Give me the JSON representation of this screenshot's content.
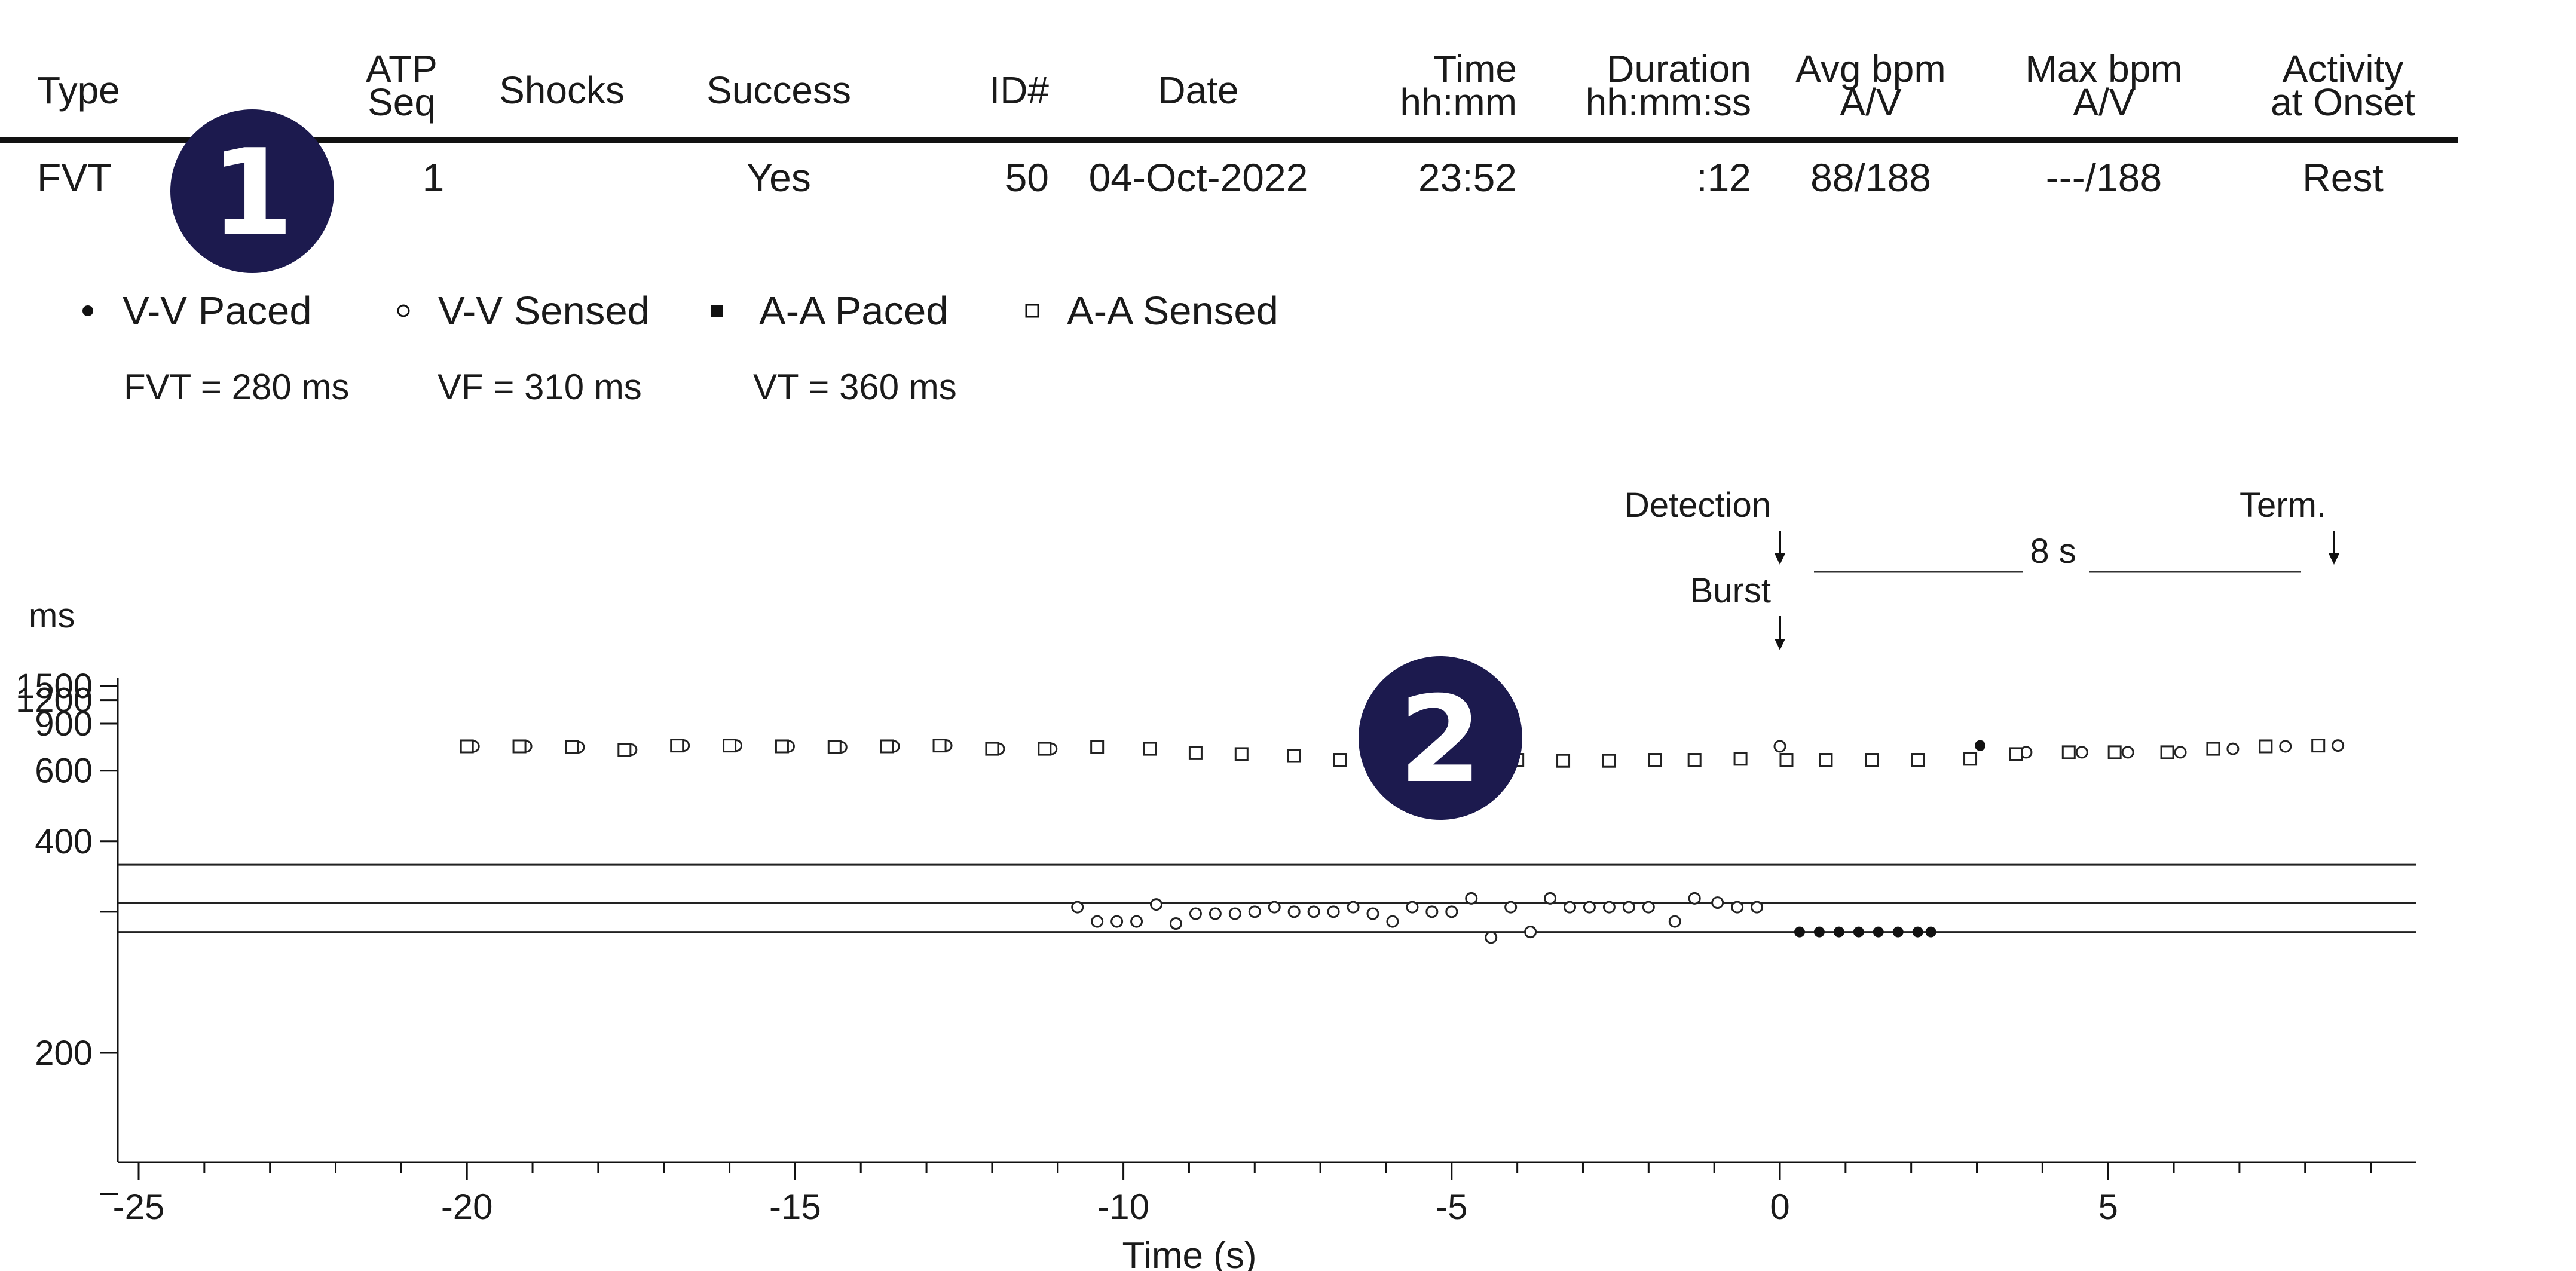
{
  "episode_table": {
    "headers": [
      {
        "key": "type",
        "lines": [
          "Type"
        ]
      },
      {
        "key": "atp_seq",
        "lines": [
          "ATP",
          "Seq"
        ]
      },
      {
        "key": "shocks",
        "lines": [
          "Shocks"
        ]
      },
      {
        "key": "success",
        "lines": [
          "Success"
        ]
      },
      {
        "key": "id",
        "lines": [
          "ID#"
        ]
      },
      {
        "key": "date",
        "lines": [
          "Date"
        ]
      },
      {
        "key": "time",
        "lines": [
          "Time",
          "hh:mm"
        ]
      },
      {
        "key": "duration",
        "lines": [
          "Duration",
          "hh:mm:ss"
        ]
      },
      {
        "key": "avg_bpm",
        "lines": [
          "Avg bpm",
          "A/V"
        ]
      },
      {
        "key": "max_bpm",
        "lines": [
          "Max bpm",
          "A/V"
        ]
      },
      {
        "key": "activity",
        "lines": [
          "Activity",
          "at Onset"
        ]
      }
    ],
    "row": {
      "type": "FVT",
      "atp_seq": "1",
      "shocks": "",
      "success": "Yes",
      "id": "50",
      "date": "04-Oct-2022",
      "time": "23:52",
      "duration": ":12",
      "avg_bpm": "88/188",
      "max_bpm": "---/188",
      "activity": "Rest"
    }
  },
  "badges": [
    {
      "label": "1",
      "color": "#1c1a4e"
    },
    {
      "label": "2",
      "color": "#1c1a4e"
    }
  ],
  "legend": [
    {
      "symbol": "filled-circle",
      "label": "V-V Paced"
    },
    {
      "symbol": "open-circle",
      "label": "V-V Sensed"
    },
    {
      "symbol": "filled-square",
      "label": "A-A Paced"
    },
    {
      "symbol": "open-square",
      "label": "A-A Sensed"
    }
  ],
  "thresholds": [
    "FVT = 280 ms",
    "VF = 310 ms",
    "VT = 360 ms"
  ],
  "annotations": {
    "detection": "Detection",
    "burst": "Burst",
    "term": "Term.",
    "span": "8 s"
  },
  "chart_data": {
    "type": "scatter",
    "ylabel": "ms",
    "xlabel": "Time (s)",
    "ylim": [
      100,
      1500
    ],
    "yscale": "reciprocal",
    "y_ticks": [
      1500,
      1200,
      900,
      600,
      400,
      200
    ],
    "y_minor_ticks": [
      300,
      150
    ],
    "xlim": [
      -25.3,
      9.6
    ],
    "x_ticks": [
      -25,
      -20,
      -15,
      -10,
      -5,
      0,
      5
    ],
    "x_tick_labels": [
      "-25",
      "-20",
      "-15",
      "-10",
      "-5",
      "0",
      "5"
    ],
    "grid": false,
    "threshold_lines": [
      {
        "name": "FVT",
        "ms": 280
      },
      {
        "name": "VF",
        "ms": 310
      },
      {
        "name": "VT",
        "ms": 360
      }
    ],
    "events": [
      {
        "name": "Detection",
        "x": 0.0
      },
      {
        "name": "Burst",
        "x": 0.0
      },
      {
        "name": "Term.",
        "x": 8.4
      }
    ],
    "series": [
      {
        "name": "V-V Paced",
        "marker": "filled-circle",
        "x": [
          0.3,
          0.6,
          0.9,
          1.2,
          1.5,
          1.8,
          2.1,
          2.3,
          3.05
        ],
        "y": [
          280,
          280,
          280,
          280,
          280,
          280,
          280,
          280,
          730
        ]
      },
      {
        "name": "V-V Sensed",
        "marker": "open-circle",
        "x": [
          -19.9,
          -19.1,
          -18.3,
          -17.5,
          -16.7,
          -15.9,
          -15.1,
          -14.3,
          -13.5,
          -12.7,
          -11.9,
          -11.1,
          -10.7,
          -10.4,
          -10.1,
          -9.8,
          -9.5,
          -9.2,
          -8.9,
          -8.6,
          -8.3,
          -8.0,
          -7.7,
          -7.4,
          -7.1,
          -6.8,
          -6.5,
          -6.2,
          -5.9,
          -5.6,
          -5.3,
          -5.0,
          -4.7,
          -4.4,
          -4.1,
          -3.8,
          -3.5,
          -3.2,
          -2.9,
          -2.6,
          -2.3,
          -2.0,
          -1.6,
          -1.3,
          -0.95,
          -0.65,
          -0.35,
          0.0,
          3.75,
          4.6,
          5.3,
          6.1,
          6.9,
          7.7,
          8.5
        ],
        "y": [
          725,
          725,
          720,
          705,
          730,
          730,
          725,
          720,
          725,
          730,
          710,
          710,
          305,
          290,
          290,
          290,
          308,
          288,
          298,
          298,
          298,
          300,
          305,
          300,
          300,
          300,
          305,
          298,
          290,
          305,
          300,
          300,
          315,
          275,
          305,
          280,
          315,
          305,
          305,
          305,
          305,
          305,
          290,
          315,
          310,
          305,
          305,
          725,
          690,
          690,
          690,
          690,
          710,
          725,
          730
        ]
      },
      {
        "name": "A-A Sensed",
        "marker": "open-square",
        "x": [
          -20.0,
          -19.2,
          -18.4,
          -17.6,
          -16.8,
          -16.0,
          -15.2,
          -14.4,
          -13.6,
          -12.8,
          -12.0,
          -11.2,
          -10.4,
          -9.6,
          -8.9,
          -8.2,
          -7.4,
          -6.7,
          -6.0,
          -5.3,
          -4.6,
          -4.0,
          -3.3,
          -2.6,
          -1.9,
          -1.3,
          -0.6,
          0.1,
          0.7,
          1.4,
          2.1,
          2.9,
          3.6,
          4.4,
          5.1,
          5.9,
          6.6,
          7.4,
          8.2
        ],
        "y": [
          725,
          725,
          720,
          705,
          730,
          730,
          725,
          720,
          725,
          730,
          710,
          710,
          720,
          710,
          685,
          680,
          670,
          650,
          650,
          650,
          650,
          650,
          645,
          645,
          650,
          650,
          655,
          650,
          650,
          650,
          650,
          655,
          680,
          690,
          690,
          690,
          710,
          725,
          730
        ]
      }
    ]
  }
}
